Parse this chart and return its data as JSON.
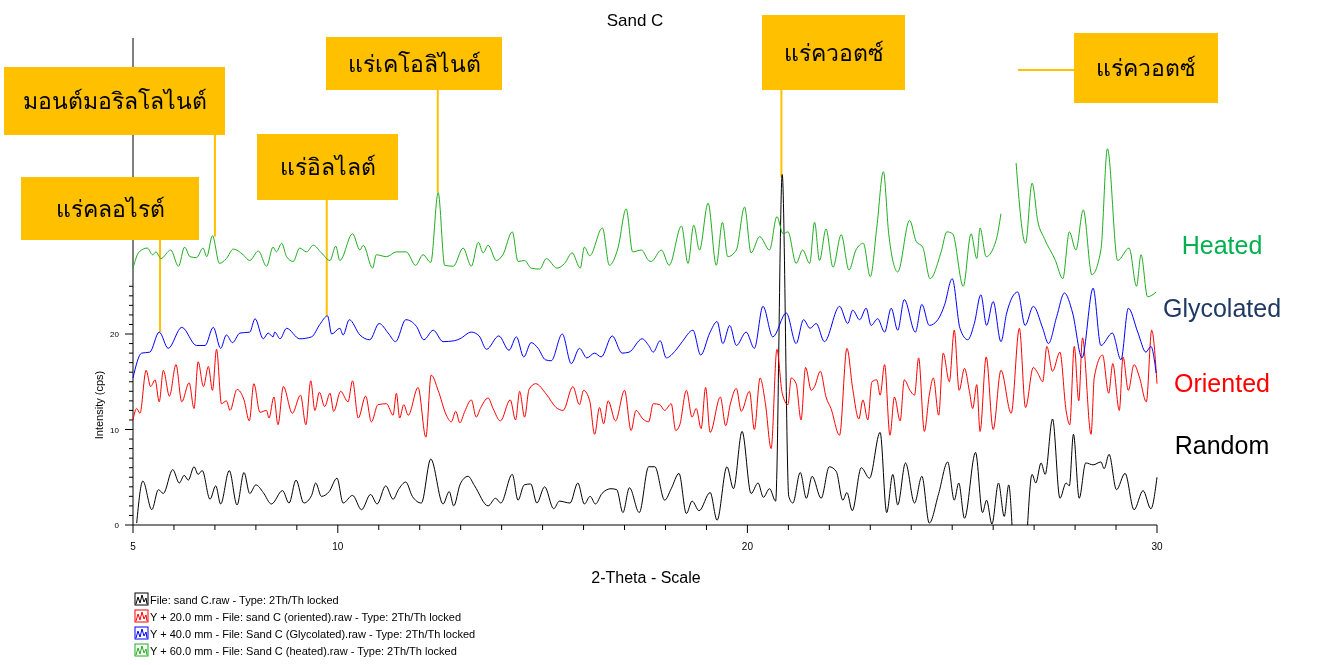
{
  "chart_data": {
    "type": "line",
    "title": "Sand C",
    "xlabel": "2-Theta - Scale",
    "ylabel": "Intensity (cps)",
    "xlim": [
      5,
      30
    ],
    "ylim": [
      0,
      51
    ],
    "xticks": [
      5,
      {
        "value": 6,
        "label": null
      },
      {
        "value": 7,
        "label": null
      },
      {
        "value": 8,
        "label": null
      },
      {
        "value": 9,
        "label": null
      },
      10,
      {
        "value": 11,
        "label": null
      },
      {
        "value": 12,
        "label": null
      },
      {
        "value": 13,
        "label": null
      },
      {
        "value": 14,
        "label": null
      },
      {
        "value": 15,
        "label": null
      },
      {
        "value": 16,
        "label": null
      },
      {
        "value": 17,
        "label": null
      },
      {
        "value": 18,
        "label": null
      },
      {
        "value": 19,
        "label": null
      },
      20,
      {
        "value": 21,
        "label": null
      },
      {
        "value": 22,
        "label": null
      },
      {
        "value": 23,
        "label": null
      },
      {
        "value": 24,
        "label": null
      },
      {
        "value": 25,
        "label": null
      },
      {
        "value": 26,
        "label": null
      },
      {
        "value": 27,
        "label": null
      },
      {
        "value": 28,
        "label": null
      },
      {
        "value": 29,
        "label": null
      },
      30
    ],
    "yticks": [
      0,
      {
        "value": 1,
        "label": null
      },
      {
        "value": 2,
        "label": null
      },
      {
        "value": 3,
        "label": null
      },
      {
        "value": 4,
        "label": null
      },
      {
        "value": 5,
        "label": null
      },
      {
        "value": 6,
        "label": null
      },
      {
        "value": 7,
        "label": null
      },
      {
        "value": 8,
        "label": null
      },
      {
        "value": 9,
        "label": null
      },
      10,
      {
        "value": 11,
        "label": null
      },
      {
        "value": 12,
        "label": null
      },
      {
        "value": 13,
        "label": null
      },
      {
        "value": 14,
        "label": null
      },
      {
        "value": 15,
        "label": null
      },
      {
        "value": 16,
        "label": null
      },
      {
        "value": 17,
        "label": null
      },
      {
        "value": 18,
        "label": null
      },
      {
        "value": 19,
        "label": null
      },
      20,
      {
        "value": 21,
        "label": null
      },
      {
        "value": 22,
        "label": null
      },
      {
        "value": 23,
        "label": null
      },
      {
        "value": 24,
        "label": null
      },
      {
        "value": 25,
        "label": null
      }
    ],
    "grid": false,
    "legend": "bottom",
    "marker": "none",
    "line_style": "solid",
    "series": [
      {
        "name": "File: sand C.raw - Type: 2Th/Th locked",
        "color": "#000000",
        "x": [
          5.09,
          5.24,
          5.46,
          5.62,
          5.74,
          5.97,
          6.13,
          6.25,
          6.35,
          6.49,
          6.59,
          6.69,
          6.88,
          7.02,
          7.14,
          7.35,
          7.54,
          7.71,
          7.85,
          8.0,
          8.18,
          8.38,
          8.65,
          8.81,
          8.98,
          9.17,
          9.36,
          9.46,
          9.6,
          9.79,
          9.98,
          10.13,
          10.36,
          10.58,
          10.8,
          10.96,
          11.17,
          11.35,
          11.48,
          11.66,
          11.82,
          12.04,
          12.27,
          12.57,
          12.72,
          12.83,
          12.99,
          13.18,
          13.34,
          13.67,
          13.85,
          13.98,
          14.26,
          14.4,
          14.55,
          14.71,
          14.86,
          15.05,
          15.27,
          15.41,
          15.67,
          15.86,
          16.02,
          16.16,
          16.29,
          16.45,
          16.67,
          16.81,
          16.96,
          17.12,
          17.36,
          17.59,
          17.74,
          17.98,
          18.14,
          18.33,
          18.51,
          18.65,
          18.82,
          19.09,
          19.26,
          19.5,
          19.66,
          19.87,
          20.09,
          20.26,
          20.39,
          20.54,
          20.69,
          20.85,
          21.01,
          21.11,
          21.29,
          21.44,
          21.58,
          21.8,
          22.0,
          22.17,
          22.33,
          22.43,
          22.56,
          22.78,
          22.98,
          23.24,
          23.4,
          23.55,
          23.67,
          23.86,
          24.08,
          24.26,
          24.44,
          24.67,
          24.89,
          25.05,
          25.16,
          25.3,
          25.57,
          25.74,
          25.84,
          25.97,
          26.13,
          26.27,
          26.38,
          26.46,
          26.63,
          26.84,
          26.95,
          27.04,
          27.17,
          27.27,
          27.45,
          27.63,
          27.78,
          27.86,
          27.96,
          28.1,
          28.26,
          28.44,
          28.63,
          28.71,
          28.83,
          29.01,
          29.22,
          29.44,
          29.66,
          29.85,
          30.0
        ],
        "values": [
          0.2,
          4.6,
          1.6,
          3.7,
          3.3,
          5.8,
          4.4,
          5.2,
          4.7,
          6.1,
          5.3,
          5.7,
          2.7,
          4.1,
          2.2,
          5.7,
          2.1,
          5.5,
          3.3,
          4.2,
          3.4,
          2.2,
          3.6,
          2.3,
          4.7,
          2.3,
          3.1,
          4.4,
          3.0,
          3.5,
          4.9,
          2.3,
          3.1,
          1.6,
          3.2,
          2.2,
          4.1,
          2.7,
          3.7,
          4.5,
          3.0,
          2.3,
          6.9,
          2.2,
          3.5,
          2.0,
          4.3,
          5.1,
          4.1,
          2.0,
          2.8,
          2.3,
          5.3,
          2.6,
          4.2,
          4.3,
          2.3,
          4.0,
          1.7,
          2.5,
          2.3,
          4.4,
          2.2,
          3.0,
          2.2,
          3.3,
          3.8,
          3.7,
          1.3,
          3.9,
          1.3,
          6.1,
          6.1,
          2.6,
          3.8,
          5.4,
          1.2,
          2.5,
          1.5,
          3.4,
          0.5,
          6.1,
          3.8,
          9.8,
          3.3,
          4.4,
          2.9,
          3.8,
          2.5,
          36.7,
          3.0,
          2.3,
          5.5,
          2.8,
          5.1,
          2.8,
          6.1,
          5.6,
          2.6,
          3.4,
          1.5,
          6.0,
          4.9,
          9.7,
          1.3,
          5.3,
          2.1,
          6.5,
          2.3,
          5.1,
          0.2,
          3.3,
          6.6,
          2.6,
          4.4,
          0.7,
          7.6,
          1.3,
          2.6,
          0.1,
          4.4,
          0.9,
          4.2,
          0,
          null,
          0,
          5.3,
          4.4,
          6.5,
          5.3,
          11.1,
          2.8,
          4.4,
          4.1,
          9.5,
          2.8,
          6.5,
          6.3,
          6.6,
          5.9,
          7.4,
          3.7,
          5.4,
          1.6,
          3.6,
          1.7,
          5.0
        ]
      },
      {
        "name": "Y + 20.0 mm - File: sand C (oriented).raw - Type: 2Th/Th locked",
        "color": "#ff0000",
        "x": [
          5.0,
          5.09,
          5.17,
          5.32,
          5.43,
          5.54,
          5.64,
          5.74,
          5.89,
          6.05,
          6.19,
          6.37,
          6.49,
          6.59,
          6.72,
          6.84,
          6.94,
          7.04,
          7.16,
          7.28,
          7.37,
          7.54,
          7.71,
          7.84,
          7.95,
          8.1,
          8.26,
          8.32,
          8.44,
          8.54,
          8.67,
          8.89,
          9.09,
          9.22,
          9.34,
          9.44,
          9.55,
          9.68,
          9.81,
          9.9,
          10.07,
          10.25,
          10.36,
          10.5,
          10.68,
          10.82,
          10.98,
          11.19,
          11.35,
          11.43,
          11.51,
          11.61,
          11.72,
          11.96,
          12.15,
          12.28,
          12.45,
          12.65,
          12.77,
          12.88,
          12.98,
          13.1,
          13.26,
          13.38,
          13.48,
          13.67,
          13.79,
          13.97,
          14.21,
          14.34,
          14.44,
          14.56,
          14.67,
          14.83,
          15.09,
          15.33,
          15.5,
          15.74,
          15.9,
          16.0,
          16.15,
          16.27,
          16.39,
          16.49,
          16.6,
          16.78,
          17.0,
          17.16,
          17.28,
          17.45,
          17.59,
          17.7,
          17.86,
          17.98,
          18.14,
          18.25,
          18.35,
          18.51,
          18.65,
          18.75,
          18.87,
          18.98,
          19.09,
          19.34,
          19.47,
          19.58,
          19.73,
          19.85,
          20.05,
          20.17,
          20.31,
          20.44,
          20.58,
          20.72,
          20.85,
          20.99,
          21.07,
          21.19,
          21.31,
          21.42,
          21.56,
          21.64,
          21.78,
          21.92,
          22.04,
          22.25,
          22.43,
          22.57,
          22.72,
          22.82,
          22.94,
          23.04,
          23.16,
          23.24,
          23.35,
          23.48,
          23.59,
          23.73,
          23.83,
          23.97,
          24.08,
          24.18,
          24.32,
          24.44,
          24.54,
          24.67,
          24.78,
          24.93,
          25.05,
          25.17,
          25.3,
          25.42,
          25.5,
          25.6,
          25.68,
          25.83,
          26.0,
          26.19,
          26.44,
          26.64,
          26.79,
          26.98,
          27.09,
          27.21,
          27.31,
          27.45,
          27.63,
          27.78,
          27.87,
          27.98,
          28.09,
          28.18,
          28.39,
          28.47,
          28.67,
          28.82,
          28.92,
          29.08,
          29.17,
          29.3,
          29.44,
          29.57,
          29.74,
          29.87,
          30.0
        ],
        "values": [
          11.0,
          12.2,
          11.7,
          16.2,
          14.5,
          15.2,
          12.9,
          16.2,
          13.5,
          16.8,
          12.9,
          14.9,
          12.2,
          17.1,
          14.5,
          16.6,
          14.1,
          18.4,
          12.7,
          13.0,
          12.0,
          14.2,
          13.1,
          10.9,
          14.8,
          11.8,
          12.0,
          11.2,
          13.4,
          10.5,
          14.5,
          11.7,
          13.6,
          10.5,
          15.1,
          12.0,
          13.9,
          12.4,
          13.8,
          11.9,
          14.0,
          12.9,
          15.1,
          11.2,
          13.5,
          10.8,
          12.6,
          12.7,
          11.5,
          13.8,
          11.2,
          12.6,
          11.5,
          14.4,
          9.2,
          15.7,
          14.1,
          11.5,
          10.8,
          11.9,
          10.7,
          11.9,
          13.1,
          11.3,
          12.2,
          13.3,
          12.2,
          10.9,
          13.1,
          11.0,
          14.0,
          11.3,
          14.2,
          14.8,
          13.7,
          12.3,
          12.0,
          14.5,
          12.6,
          14.1,
          13.0,
          9.5,
          12.3,
          10.6,
          13.0,
          10.9,
          14.1,
          9.9,
          12.0,
          11.1,
          10.8,
          12.7,
          12.6,
          12.0,
          12.7,
          9.9,
          10.5,
          14.1,
          11.3,
          12.2,
          10.1,
          14.4,
          9.7,
          13.4,
          10.4,
          12.6,
          14.3,
          11.9,
          14.0,
          10.0,
          15.4,
          12.7,
          8.0,
          18.4,
          13.8,
          12.6,
          15.4,
          14.8,
          11.0,
          16.5,
          14.1,
          14.5,
          16.1,
          13.4,
          12.2,
          9.4,
          18.5,
          14.3,
          11.1,
          13.1,
          11.0,
          15.0,
          15.2,
          13.6,
          16.8,
          9.4,
          13.4,
          10.9,
          15.2,
          14.1,
          13.6,
          17.5,
          9.8,
          13.6,
          15.4,
          11.5,
          18.0,
          15.0,
          20.4,
          14.1,
          16.4,
          14.0,
          12.2,
          14.7,
          9.8,
          17.6,
          10.0,
          16.2,
          11.7,
          20.6,
          12.3,
          16.5,
          15.9,
          15.0,
          18.7,
          16.1,
          18.1,
          12.0,
          10.5,
          18.7,
          13.0,
          19.6,
          9.5,
          15.5,
          17.8,
          13.8,
          16.9,
          12.0,
          17.6,
          14.1,
          16.8,
          15.5,
          12.9,
          20.4,
          14.8
        ]
      },
      {
        "name": "Y + 40.0 mm - File: Sand C (Glycolated).raw - Type: 2Th/Th locked",
        "color": "#0000ff",
        "x": [
          5.0,
          5.21,
          5.41,
          5.64,
          5.86,
          6.19,
          6.55,
          6.76,
          6.96,
          7.14,
          7.28,
          7.43,
          7.61,
          7.85,
          7.98,
          8.18,
          8.3,
          8.42,
          8.46,
          8.59,
          8.75,
          9.07,
          9.36,
          9.56,
          9.75,
          9.85,
          10.05,
          10.13,
          10.28,
          10.54,
          10.78,
          11.01,
          11.23,
          11.41,
          11.66,
          11.92,
          12.1,
          12.33,
          12.57,
          12.85,
          12.98,
          13.26,
          13.45,
          13.63,
          13.93,
          14.18,
          14.36,
          14.54,
          14.72,
          14.89,
          15.07,
          15.21,
          15.48,
          15.7,
          15.9,
          16.08,
          16.27,
          16.43,
          16.7,
          16.94,
          17.11,
          17.43,
          17.59,
          17.7,
          17.87,
          18.02,
          18.25,
          18.41,
          18.67,
          18.86,
          19.08,
          19.26,
          19.4,
          19.57,
          19.73,
          19.97,
          20.17,
          20.38,
          20.62,
          20.95,
          21.19,
          21.37,
          21.53,
          21.68,
          21.88,
          22.25,
          22.45,
          22.57,
          22.74,
          22.9,
          23.02,
          23.18,
          23.35,
          23.51,
          23.67,
          23.83,
          24.1,
          24.26,
          24.44,
          24.65,
          24.81,
          25.0,
          25.19,
          25.38,
          25.54,
          25.7,
          25.84,
          26.0,
          26.19,
          26.33,
          26.6,
          26.78,
          26.98,
          27.21,
          27.35,
          27.55,
          27.74,
          27.94,
          28.17,
          28.44,
          28.63,
          28.91,
          29.12,
          29.3,
          29.53,
          29.73,
          29.85,
          29.98
        ],
        "values": [
          15.4,
          18.0,
          18.1,
          20.2,
          18.5,
          20.7,
          18.8,
          18.8,
          20.7,
          18.5,
          19.9,
          19.1,
          20.1,
          20.2,
          21.6,
          19.5,
          20.1,
          19.7,
          20.2,
          19.5,
          20.6,
          19.5,
          19.7,
          21.0,
          21.9,
          20.0,
          20.6,
          19.9,
          21.5,
          19.9,
          19.4,
          21.1,
          20.1,
          19.2,
          21.5,
          20.8,
          19.4,
          20.4,
          19.2,
          19.3,
          19.5,
          20.2,
          19.8,
          18.4,
          19.8,
          18.3,
          19.7,
          17.6,
          19.1,
          18.5,
          17.3,
          17.2,
          20.0,
          16.9,
          18.5,
          17.5,
          18.0,
          17.6,
          19.8,
          18.0,
          18.1,
          19.5,
          18.8,
          18.1,
          19.3,
          17.5,
          18.3,
          19.2,
          20.4,
          17.8,
          20.1,
          21.3,
          19.0,
          20.9,
          18.8,
          20.2,
          18.5,
          22.9,
          19.7,
          22.2,
          19.0,
          21.5,
          20.6,
          21.1,
          19.2,
          22.9,
          21.1,
          22.5,
          21.5,
          22.7,
          20.9,
          21.6,
          20.2,
          22.7,
          20.4,
          23.6,
          20.2,
          23.1,
          20.9,
          21.5,
          23.0,
          25.8,
          20.6,
          19.4,
          21.1,
          24.1,
          20.9,
          23.4,
          19.2,
          22.2,
          24.4,
          20.9,
          22.9,
          20.6,
          19.0,
          21.8,
          24.3,
          22.2,
          17.5,
          24.8,
          18.8,
          20.1,
          17.3,
          22.7,
          20.2,
          18.1,
          18.7,
          15.9
        ]
      },
      {
        "name": "Y + 60.0 mm - File: Sand C (heated).raw - Type: 2Th/Th locked",
        "color": "#1fae1f",
        "x": [
          5.0,
          5.15,
          5.35,
          5.48,
          5.56,
          5.68,
          5.92,
          6.11,
          6.26,
          6.39,
          6.55,
          6.71,
          6.8,
          6.94,
          7.11,
          7.28,
          7.45,
          7.69,
          7.85,
          8.06,
          8.26,
          8.42,
          8.5,
          8.63,
          8.75,
          8.91,
          9.07,
          9.24,
          9.4,
          9.6,
          9.81,
          9.95,
          10.05,
          10.36,
          10.54,
          10.62,
          10.85,
          10.94,
          11.19,
          11.43,
          11.67,
          11.9,
          12.08,
          12.27,
          12.45,
          12.61,
          12.82,
          13.06,
          13.26,
          13.43,
          13.55,
          13.67,
          13.87,
          14.03,
          14.26,
          14.4,
          14.56,
          14.72,
          14.93,
          15.09,
          15.35,
          15.54,
          15.72,
          15.92,
          16.02,
          16.15,
          16.46,
          16.63,
          16.84,
          17.04,
          17.2,
          17.41,
          17.59,
          17.65,
          17.9,
          18.09,
          18.39,
          18.55,
          18.69,
          18.83,
          19.04,
          19.24,
          19.39,
          19.52,
          19.73,
          19.93,
          20.09,
          20.3,
          20.54,
          20.72,
          20.87,
          20.99,
          21.19,
          21.35,
          21.52,
          21.64,
          21.76,
          21.92,
          22.09,
          22.29,
          22.48,
          22.65,
          22.83,
          23.0,
          23.16,
          23.32,
          23.45,
          23.67,
          23.96,
          24.12,
          24.28,
          24.46,
          24.73,
          24.87,
          25.01,
          25.27,
          25.46,
          25.6,
          25.68,
          25.83,
          26.07,
          26.19,
          26.27,
          26.4,
          26.56,
          26.79,
          26.95,
          27.09,
          27.25,
          27.52,
          27.7,
          27.86,
          28.02,
          28.2,
          28.41,
          28.63,
          28.79,
          29.04,
          29.32,
          29.5,
          29.61,
          29.77,
          29.98
        ],
        "values": [
          26.9,
          28.6,
          29.0,
          28.3,
          28.6,
          27.9,
          28.8,
          27.1,
          29.1,
          28.1,
          28.0,
          29.0,
          28.1,
          30.3,
          27.4,
          27.9,
          28.9,
          28.3,
          27.7,
          28.7,
          27.1,
          29.1,
          28.6,
          29.5,
          28.1,
          27.6,
          29.0,
          28.6,
          29.3,
          28.5,
          27.7,
          29.2,
          27.7,
          30.5,
          28.8,
          29.3,
          26.9,
          28.3,
          28.1,
          28.6,
          28.6,
          27.2,
          28.3,
          27.5,
          34.8,
          27.2,
          27.1,
          29.0,
          27.1,
          29.6,
          28.5,
          29.3,
          27.7,
          28.3,
          30.7,
          27.6,
          27.7,
          26.9,
          26.8,
          27.9,
          26.9,
          27.4,
          28.5,
          26.9,
          29.1,
          28.2,
          31.1,
          27.2,
          29.0,
          33.1,
          28.6,
          28.8,
          27.7,
          27.6,
          28.8,
          27.2,
          31.3,
          27.4,
          31.4,
          28.8,
          33.7,
          27.2,
          31.7,
          28.1,
          28.8,
          33.3,
          28.5,
          30.2,
          28.8,
          32.3,
          30.5,
          30.7,
          27.4,
          28.8,
          27.4,
          31.7,
          27.7,
          31.0,
          27.0,
          30.4,
          26.7,
          28.8,
          29.5,
          26.0,
          31.2,
          37.0,
          30.5,
          26.5,
          31.9,
          29.7,
          29.1,
          25.8,
          28.6,
          30.7,
          30.5,
          25.0,
          30.5,
          27.9,
          31.1,
          28.1,
          29.8,
          32.6,
          null,
          null,
          37.9,
          29.5,
          35.8,
          31.8,
          30.0,
          27.7,
          25.8,
          30.7,
          28.8,
          33.0,
          26.2,
          28.8,
          39.4,
          27.7,
          29.0,
          25.0,
          28.3,
          23.9,
          24.4
        ]
      }
    ],
    "annotations": [
      {
        "text": "แร่คลอไรต์",
        "x": 5.66,
        "y": 20.2
      },
      {
        "text": "มอนต์มอริลโลไนต์",
        "x": 7.0,
        "y": 30.2
      },
      {
        "text": "แร่อิลไลต์",
        "x": 9.73,
        "y": 21.9
      },
      {
        "text": "แร่เคโอลิไนต์",
        "x": 12.44,
        "y": 34.8
      },
      {
        "text": "แร่ควอตซ์",
        "x": 20.83,
        "y": 36.4
      },
      "แร่ควอตซ์",
      "Heated",
      "Glycolated",
      "Oriented",
      "Random"
    ]
  }
}
